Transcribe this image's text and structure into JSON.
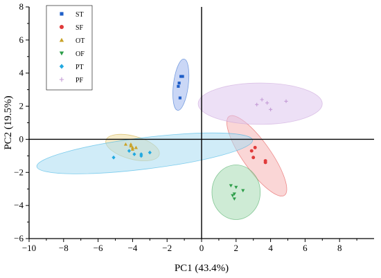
{
  "chart_data": {
    "type": "scatter",
    "title": "",
    "xlabel": "PC1 (43.4%)",
    "ylabel": "PC2 (19.5%)",
    "xlim": [
      -10,
      10
    ],
    "ylim": [
      -6,
      8
    ],
    "xticks": [
      "−10",
      "−8",
      "−6",
      "−4",
      "−2",
      "0",
      "2",
      "4",
      "6",
      "8"
    ],
    "yticks": [
      "−6",
      "−4",
      "−2",
      "0",
      "2",
      "4",
      "6",
      "8"
    ],
    "reference_lines": {
      "x": 0,
      "y": 0
    },
    "legend_position": "top-left",
    "series": [
      {
        "name": "ST",
        "marker": "square",
        "color": "#1f5fc8",
        "ellipse_fill": "#9fb7ef",
        "points": [
          [
            -1.2,
            3.8
          ],
          [
            -1.1,
            3.8
          ],
          [
            -1.3,
            3.4
          ],
          [
            -1.35,
            3.2
          ],
          [
            -1.25,
            2.5
          ]
        ],
        "ellipse": {
          "cx": -1.2,
          "cy": 3.3,
          "rx": 1.5,
          "ry": 0.45,
          "angle_deg": 83
        }
      },
      {
        "name": "SF",
        "marker": "circle",
        "color": "#e03a3a",
        "ellipse_fill": "#f5b4b4",
        "points": [
          [
            2.9,
            -0.7
          ],
          [
            3.1,
            -0.5
          ],
          [
            3.0,
            -1.1
          ],
          [
            3.7,
            -1.3
          ],
          [
            3.7,
            -1.4
          ]
        ],
        "ellipse": {
          "cx": 3.2,
          "cy": -1.0,
          "rx": 2.8,
          "ry": 0.85,
          "angle_deg": -55
        }
      },
      {
        "name": "OT",
        "marker": "triangle-up",
        "color": "#c9a227",
        "ellipse_fill": "#efdca0",
        "points": [
          [
            -4.4,
            -0.3
          ],
          [
            -4.1,
            -0.4
          ],
          [
            -4.0,
            -0.5
          ],
          [
            -3.8,
            -0.5
          ],
          [
            -4.0,
            -0.6
          ],
          [
            -4.1,
            -0.3
          ]
        ],
        "ellipse": {
          "cx": -4.0,
          "cy": -0.5,
          "rx": 1.6,
          "ry": 0.7,
          "angle_deg": -15
        }
      },
      {
        "name": "OF",
        "marker": "triangle-down",
        "color": "#2e9e4a",
        "ellipse_fill": "#a6dab3",
        "points": [
          [
            1.7,
            -2.8
          ],
          [
            2.0,
            -2.9
          ],
          [
            2.4,
            -3.1
          ],
          [
            1.9,
            -3.3
          ],
          [
            1.8,
            -3.4
          ],
          [
            1.9,
            -3.6
          ]
        ],
        "ellipse": {
          "cx": 2.0,
          "cy": -3.2,
          "rx": 1.4,
          "ry": 1.65,
          "angle_deg": 0
        }
      },
      {
        "name": "PT",
        "marker": "diamond",
        "color": "#22a9e0",
        "ellipse_fill": "#a9ddf2",
        "points": [
          [
            -5.1,
            -1.1
          ],
          [
            -4.2,
            -0.7
          ],
          [
            -3.9,
            -0.9
          ],
          [
            -3.5,
            -1.0
          ],
          [
            -3.0,
            -0.8
          ],
          [
            -3.5,
            -0.9
          ]
        ],
        "ellipse": {
          "cx": -3.3,
          "cy": -0.85,
          "rx": 6.3,
          "ry": 0.95,
          "angle_deg": 7
        }
      },
      {
        "name": "PF",
        "marker": "plus",
        "color": "#c49bd6",
        "ellipse_fill": "#dec6ef",
        "points": [
          [
            3.2,
            2.1
          ],
          [
            3.5,
            2.4
          ],
          [
            3.8,
            2.2
          ],
          [
            4.0,
            1.8
          ],
          [
            4.9,
            2.3
          ]
        ],
        "ellipse": {
          "cx": 3.4,
          "cy": 2.15,
          "rx": 3.6,
          "ry": 1.25,
          "angle_deg": 0
        }
      }
    ]
  }
}
